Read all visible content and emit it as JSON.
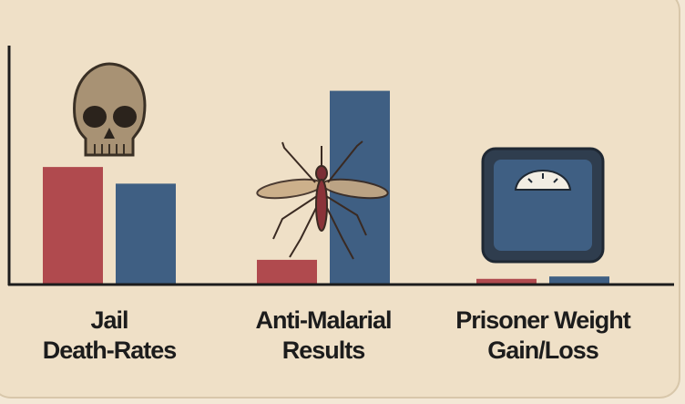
{
  "chart_data": {
    "type": "bar",
    "categories": [
      [
        "Jail",
        "Death-Rates"
      ],
      [
        "Anti-Malarial",
        "Results"
      ],
      [
        "Prisoner Weight",
        "Gain/Loss"
      ]
    ],
    "series": [
      {
        "color": "#b04a4e",
        "values": [
          49,
          10,
          2
        ]
      },
      {
        "color": "#3f5f83",
        "values": [
          42,
          81,
          3
        ]
      }
    ],
    "ylim": [
      0,
      100
    ]
  }
}
